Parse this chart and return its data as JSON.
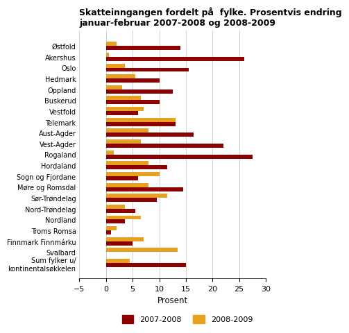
{
  "title": "Skatteinngangen fordelt på  fylke. Prosentvis endring\njanuar-februar 2007-2008 og 2008-2009",
  "categories": [
    "Østfold",
    "Akershus",
    "Oslo",
    "Hedmark",
    "Oppland",
    "Buskerud",
    "Vestfold",
    "Telemark",
    "Aust-Agder",
    "Vest-Agder",
    "Rogaland",
    "Hordaland",
    "Sogn og Fjordane",
    "Møre og Romsdal",
    "Sør-Trøndelag",
    "Nord-Trøndelag",
    "Nordland",
    "Troms Romsa",
    "Finnmark Finnmárku",
    "Svalbard",
    "Sum fylker u/\nkontinentalsøkkelen"
  ],
  "values_2007_2008": [
    14.0,
    26.0,
    15.5,
    10.0,
    12.5,
    10.0,
    6.0,
    13.0,
    16.5,
    22.0,
    27.5,
    11.5,
    6.0,
    14.5,
    9.5,
    5.5,
    3.5,
    1.0,
    5.0,
    0.0,
    15.0
  ],
  "values_2008_2009": [
    2.0,
    0.5,
    3.5,
    5.5,
    3.0,
    6.5,
    7.0,
    13.0,
    8.0,
    6.5,
    1.5,
    8.0,
    10.0,
    8.0,
    11.5,
    3.5,
    6.5,
    2.0,
    7.0,
    13.5,
    4.5
  ],
  "color_2007_2008": "#8B0000",
  "color_2008_2009": "#E8A020",
  "xlabel": "Prosent",
  "xlim": [
    -5,
    30
  ],
  "xticks": [
    -5,
    0,
    5,
    10,
    15,
    20,
    25,
    30
  ],
  "background_color": "#ffffff",
  "grid_color": "#cccccc"
}
